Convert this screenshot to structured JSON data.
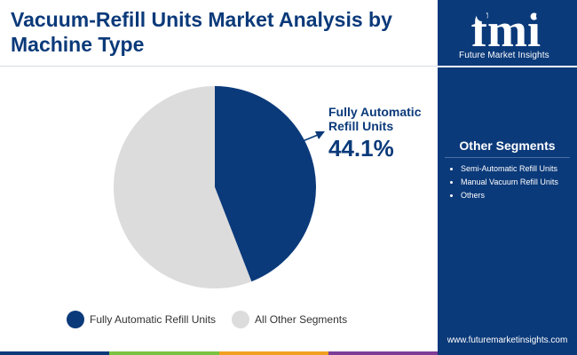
{
  "title": "Vacuum-Refill Units Market Analysis by Machine Type",
  "logo": {
    "wordmark": "fmi",
    "caption": "Future Market Insights"
  },
  "callout": {
    "label": "Fully Automatic Refill Units",
    "value": "44.1%"
  },
  "other_segments": {
    "title": "Other Segments",
    "items": [
      "Semi-Automatic Refill Units",
      "Manual Vacuum Refill Units",
      "Others"
    ]
  },
  "website": "www.futuremarketinsights.com",
  "colors": {
    "primary": "#0b3a7a",
    "secondary": "#dcdcdc",
    "bottom_bar": [
      "#0b3a7a",
      "#7cc242",
      "#f0a020",
      "#7d3c98"
    ]
  },
  "chart_data": {
    "type": "pie",
    "slices": [
      {
        "name": "Fully Automatic Refill Units",
        "value": 44.1,
        "color": "#0b3a7a"
      },
      {
        "name": "All Other Segments",
        "value": 55.9,
        "color": "#dcdcdc"
      }
    ],
    "start": "12 o'clock",
    "direction": "clockwise",
    "legend_position": "bottom"
  }
}
